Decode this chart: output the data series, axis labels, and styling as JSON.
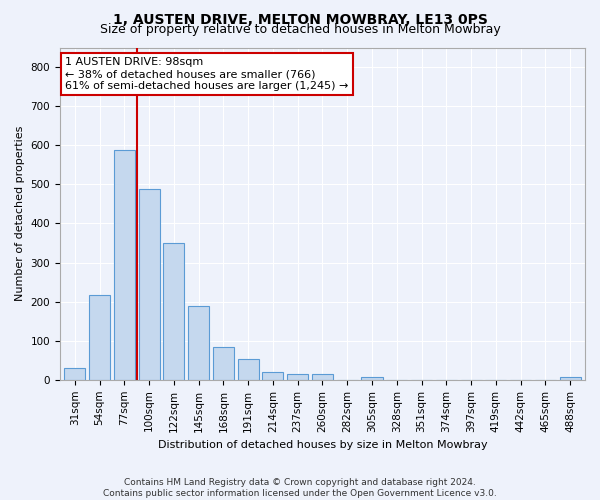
{
  "title": "1, AUSTEN DRIVE, MELTON MOWBRAY, LE13 0PS",
  "subtitle": "Size of property relative to detached houses in Melton Mowbray",
  "xlabel": "Distribution of detached houses by size in Melton Mowbray",
  "ylabel": "Number of detached properties",
  "bar_color": "#c5d8ee",
  "bar_edge_color": "#5b9bd5",
  "categories": [
    "31sqm",
    "54sqm",
    "77sqm",
    "100sqm",
    "122sqm",
    "145sqm",
    "168sqm",
    "191sqm",
    "214sqm",
    "237sqm",
    "260sqm",
    "282sqm",
    "305sqm",
    "328sqm",
    "351sqm",
    "374sqm",
    "397sqm",
    "419sqm",
    "442sqm",
    "465sqm",
    "488sqm"
  ],
  "values": [
    30,
    218,
    588,
    488,
    350,
    190,
    85,
    53,
    20,
    15,
    14,
    0,
    8,
    0,
    0,
    0,
    0,
    0,
    0,
    0,
    8
  ],
  "ylim": [
    0,
    850
  ],
  "yticks": [
    0,
    100,
    200,
    300,
    400,
    500,
    600,
    700,
    800
  ],
  "annotation_text": "1 AUSTEN DRIVE: 98sqm\n← 38% of detached houses are smaller (766)\n61% of semi-detached houses are larger (1,245) →",
  "annotation_box_color": "#ffffff",
  "annotation_box_edge": "#cc0000",
  "footer_line1": "Contains HM Land Registry data © Crown copyright and database right 2024.",
  "footer_line2": "Contains public sector information licensed under the Open Government Licence v3.0.",
  "bg_color": "#eef2fb",
  "grid_color": "#ffffff",
  "title_fontsize": 10,
  "subtitle_fontsize": 9,
  "axis_label_fontsize": 8,
  "tick_fontsize": 7.5,
  "footer_fontsize": 6.5,
  "annotation_fontsize": 8,
  "red_line_color": "#cc0000",
  "red_line_x": 2.5
}
